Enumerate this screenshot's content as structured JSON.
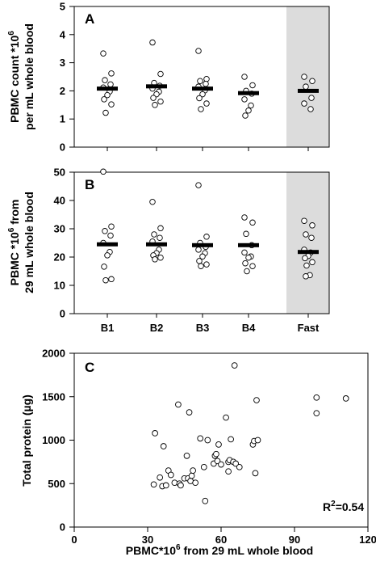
{
  "chart_data": [
    {
      "type": "scatter",
      "panel": "A",
      "ylabel_line1": "PBMC count *10",
      "ylabel_sup": "6",
      "ylabel_line2": "per mL whole blood",
      "ylim": [
        0,
        5
      ],
      "yticks": [
        "0",
        "1",
        "2",
        "3",
        "4",
        "5"
      ],
      "categories": [
        "B1",
        "B2",
        "B3",
        "B4",
        "Fast"
      ],
      "means": [
        2.08,
        2.16,
        2.08,
        1.92,
        2.0
      ],
      "points": [
        [
          3.33,
          2.62,
          2.38,
          2.23,
          2.12,
          1.98,
          1.85,
          1.7,
          1.52,
          1.22
        ],
        [
          3.72,
          2.6,
          2.28,
          2.18,
          2.08,
          1.97,
          1.88,
          1.75,
          1.62,
          1.5
        ],
        [
          3.42,
          2.42,
          2.35,
          2.25,
          2.15,
          2.02,
          1.88,
          1.74,
          1.55,
          1.35
        ],
        [
          2.5,
          2.2,
          2.0,
          1.9,
          1.7,
          1.48,
          1.3,
          1.12
        ],
        [
          2.5,
          2.35,
          2.15,
          1.75,
          1.55,
          1.35
        ]
      ],
      "shaded_category": "Fast"
    },
    {
      "type": "scatter",
      "panel": "B",
      "ylabel_line1": "PBMC *10",
      "ylabel_sup": "6",
      "ylabel_line1_tail": " from",
      "ylabel_line2": "29 mL whole blood",
      "ylim": [
        0,
        50
      ],
      "yticks": [
        "0",
        "10",
        "20",
        "30",
        "40",
        "50"
      ],
      "categories": [
        "B1",
        "B2",
        "B3",
        "B4",
        "Fast"
      ],
      "means": [
        24.5,
        24.5,
        24.2,
        24.2,
        21.8
      ],
      "points": [
        [
          50.2,
          30.8,
          29.2,
          27.6,
          25.0,
          21.8,
          20.6,
          16.6,
          12.2,
          11.8
        ],
        [
          39.5,
          30.2,
          28.0,
          26.8,
          25.5,
          22.6,
          21.4,
          20.6,
          19.8,
          19.2
        ],
        [
          45.4,
          27.2,
          25.0,
          23.6,
          22.6,
          21.4,
          20.2,
          18.6,
          17.4,
          16.8
        ],
        [
          34.0,
          32.2,
          28.2,
          24.2,
          21.6,
          20.2,
          19.8,
          17.8,
          16.8,
          15.0
        ],
        [
          32.8,
          31.2,
          28.0,
          26.8,
          22.6,
          21.6,
          20.4,
          19.6,
          18.2,
          17.0,
          13.6,
          13.2
        ]
      ],
      "shaded_category": "Fast"
    },
    {
      "type": "scatter",
      "panel": "C",
      "ylabel": "Total protein (µg)",
      "xlabel_prefix": "PBMC*10",
      "xlabel_sup": "6",
      "xlabel_tail": " from 29 mL whole blood",
      "xlim": [
        0,
        120
      ],
      "ylim": [
        0,
        2000
      ],
      "xticks": [
        "0",
        "30",
        "60",
        "90",
        "120"
      ],
      "yticks": [
        "0",
        "500",
        "1000",
        "1500",
        "2000"
      ],
      "annotation_prefix": "R",
      "annotation_sup": "2",
      "annotation_tail": "=0.54",
      "points": [
        [
          32.5,
          490
        ],
        [
          33.0,
          1080
        ],
        [
          35.0,
          570
        ],
        [
          36.0,
          470
        ],
        [
          36.5,
          930
        ],
        [
          37.5,
          480
        ],
        [
          38.5,
          650
        ],
        [
          39.5,
          600
        ],
        [
          41.0,
          510
        ],
        [
          42.5,
          1410
        ],
        [
          43.0,
          500
        ],
        [
          43.5,
          480
        ],
        [
          45.0,
          560
        ],
        [
          46.0,
          820
        ],
        [
          46.5,
          560
        ],
        [
          47.0,
          1320
        ],
        [
          47.5,
          530
        ],
        [
          48.0,
          590
        ],
        [
          48.5,
          650
        ],
        [
          49.5,
          510
        ],
        [
          51.5,
          1020
        ],
        [
          53.0,
          690
        ],
        [
          53.5,
          300
        ],
        [
          54.5,
          1000
        ],
        [
          57.0,
          730
        ],
        [
          57.5,
          820
        ],
        [
          58.0,
          840
        ],
        [
          58.5,
          760
        ],
        [
          59.0,
          950
        ],
        [
          60.0,
          720
        ],
        [
          62.0,
          1260
        ],
        [
          63.0,
          750
        ],
        [
          63.0,
          640
        ],
        [
          63.5,
          770
        ],
        [
          64.0,
          1010
        ],
        [
          65.0,
          750
        ],
        [
          65.5,
          1860
        ],
        [
          66.0,
          730
        ],
        [
          67.5,
          690
        ],
        [
          73.0,
          950
        ],
        [
          73.5,
          990
        ],
        [
          74.0,
          620
        ],
        [
          74.5,
          1460
        ],
        [
          75.0,
          1000
        ],
        [
          99.0,
          1490
        ],
        [
          99.0,
          1310
        ],
        [
          111.0,
          1480
        ]
      ]
    }
  ]
}
